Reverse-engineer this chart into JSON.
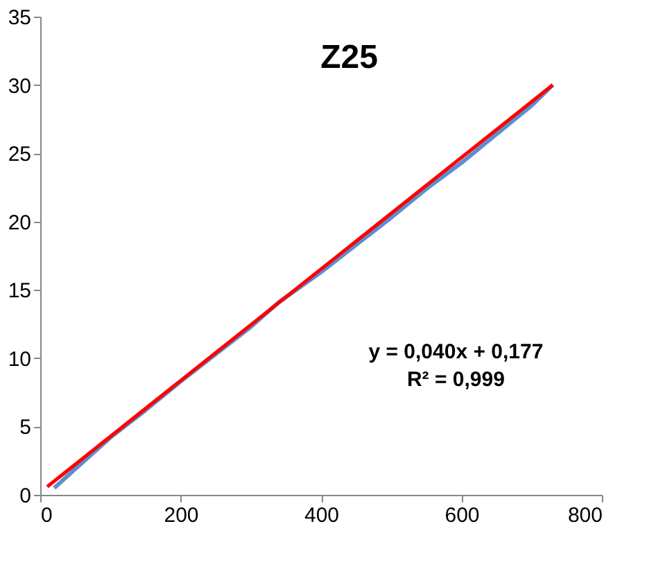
{
  "chart_data": {
    "type": "line",
    "title": "Z25",
    "series": [
      {
        "color": "#5b8fd0",
        "x": [
          20,
          50,
          100,
          150,
          200,
          250,
          300,
          340,
          400,
          450,
          500,
          550,
          600,
          650,
          700,
          730
        ],
        "values": [
          0.5,
          1.9,
          4.2,
          6.2,
          8.3,
          10.3,
          12.3,
          14.1,
          16.3,
          18.3,
          20.3,
          22.4,
          24.3,
          26.4,
          28.5,
          30
        ]
      },
      {
        "type": "line",
        "color": "#ff0000",
        "x": [
          10,
          730
        ],
        "values": [
          0.6,
          30
        ]
      }
    ],
    "annotations": [
      "y = 0,040x + 0,177",
      "R² = 0,999"
    ],
    "xlim": [
      0,
      800
    ],
    "xticks": [
      0,
      200,
      400,
      600,
      800
    ],
    "ylim": [
      0,
      35
    ],
    "yticks": [
      0,
      5,
      10,
      15,
      20,
      25,
      30,
      35
    ],
    "grid": false
  }
}
